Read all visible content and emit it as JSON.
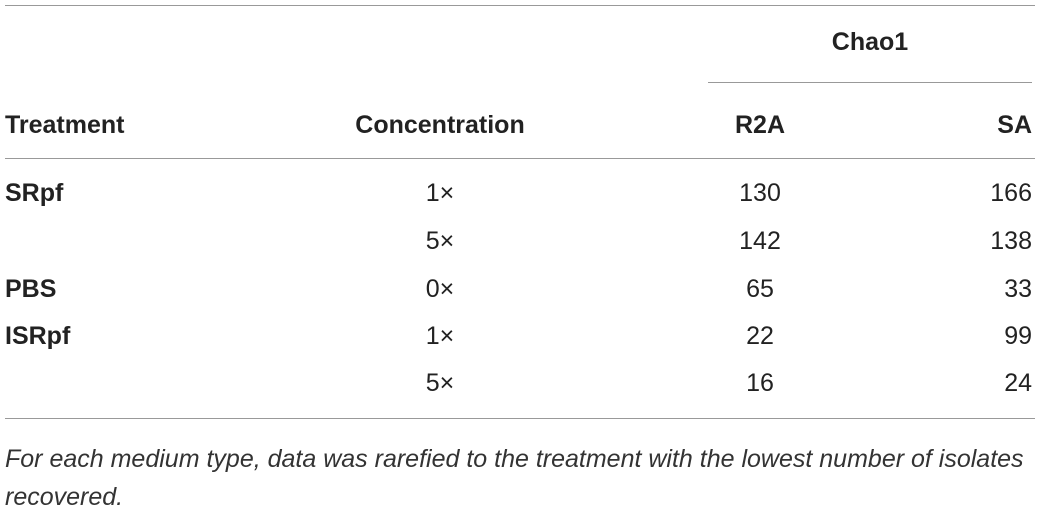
{
  "table": {
    "group_header": "Chao1",
    "headers": [
      "Treatment",
      "Concentration",
      "R2A",
      "SA"
    ],
    "rows": [
      {
        "treatment": "SRpf",
        "concentration": "1×",
        "r2a": 130,
        "sa": 166
      },
      {
        "concentration": "5×",
        "r2a": 142,
        "sa": 138
      },
      {
        "treatment": "PBS",
        "concentration": "0×",
        "r2a": 65,
        "sa": 33
      },
      {
        "treatment": "ISRpf",
        "concentration": "1×",
        "r2a": 22,
        "sa": 99
      },
      {
        "concentration": "5×",
        "r2a": 16,
        "sa": 24
      }
    ],
    "footnote": "For each medium type, data was rarefied to the treatment with the lowest number of isolates recovered."
  }
}
